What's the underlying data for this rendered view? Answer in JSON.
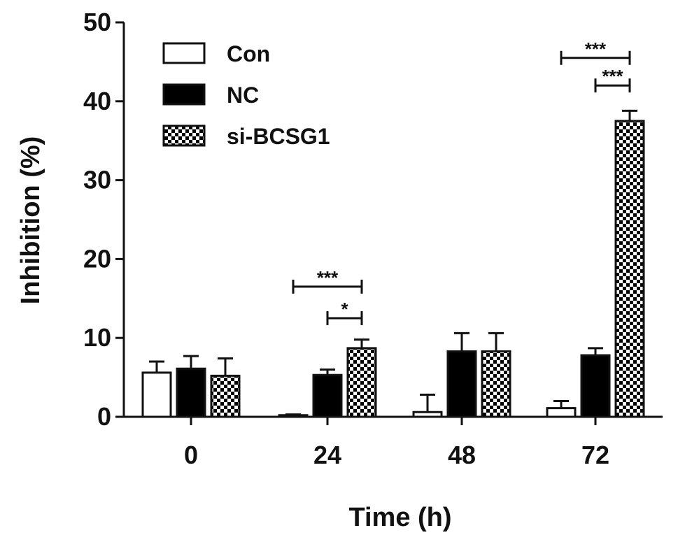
{
  "chart_data": {
    "type": "bar",
    "xlabel": "Time (h)",
    "ylabel": "Inhibition (%)",
    "ylim": [
      0,
      50
    ],
    "yticks": [
      0,
      10,
      20,
      30,
      40,
      50
    ],
    "categories": [
      "0",
      "24",
      "48",
      "72"
    ],
    "series": [
      {
        "name": "Con",
        "values": [
          5.6,
          0.2,
          0.6,
          1.1
        ],
        "errors": [
          1.4,
          0.1,
          2.2,
          0.9
        ],
        "fill": "white"
      },
      {
        "name": "NC",
        "values": [
          6.1,
          5.3,
          8.3,
          7.8
        ],
        "errors": [
          1.6,
          0.7,
          2.3,
          0.9
        ],
        "fill": "black"
      },
      {
        "name": "si-BCSG1",
        "values": [
          5.2,
          8.7,
          8.3,
          37.5
        ],
        "errors": [
          2.2,
          1.1,
          2.3,
          1.3
        ],
        "fill": "checker"
      }
    ],
    "significance": [
      {
        "category": "24",
        "from_series": "Con",
        "to_series": "si-BCSG1",
        "y": 16.5,
        "label": "***"
      },
      {
        "category": "24",
        "from_series": "NC",
        "to_series": "si-BCSG1",
        "y": 12.5,
        "label": "*"
      },
      {
        "category": "72",
        "from_series": "Con",
        "to_series": "si-BCSG1",
        "y": 45.5,
        "label": "***"
      },
      {
        "category": "72",
        "from_series": "NC",
        "to_series": "si-BCSG1",
        "y": 42.0,
        "label": "***"
      }
    ],
    "legend_position": "top-left",
    "grid": false
  },
  "colors": {
    "axis": "#111111",
    "bar_stroke": "#111111",
    "solid_fill": "#000000",
    "open_fill": "#ffffff"
  }
}
